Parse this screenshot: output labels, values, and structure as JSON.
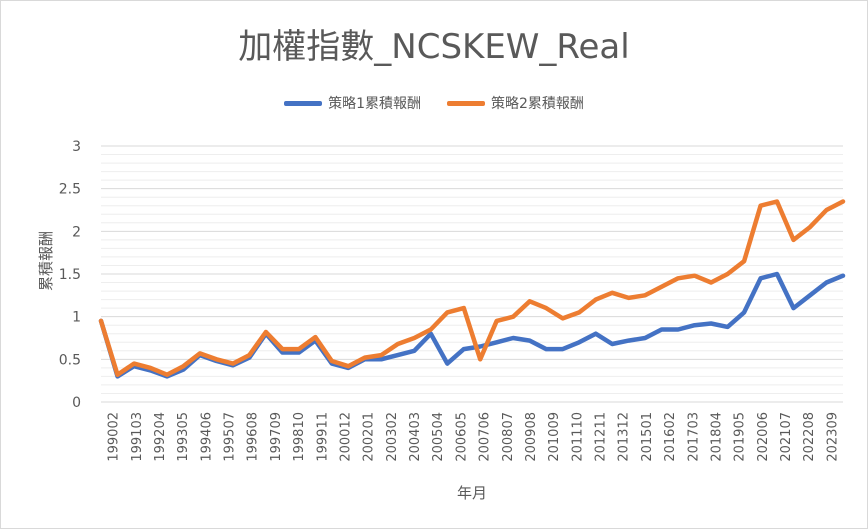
{
  "chart_data": {
    "type": "line",
    "title": "加權指數_NCSKEW_Real",
    "xlabel": "年月",
    "ylabel": "累積報酬",
    "ylim": [
      0,
      3
    ],
    "yticks": [
      "0",
      "0.5",
      "1",
      "1.5",
      "2",
      "2.5",
      "3"
    ],
    "xtick_labels": [
      "199002",
      "199103",
      "199204",
      "199305",
      "199406",
      "199507",
      "199608",
      "199709",
      "199810",
      "199911",
      "200012",
      "200201",
      "200302",
      "200403",
      "200504",
      "200605",
      "200706",
      "200807",
      "200908",
      "201009",
      "201110",
      "201211",
      "201312",
      "201501",
      "201602",
      "201703",
      "201804",
      "201905",
      "202006",
      "202107",
      "202208",
      "202309"
    ],
    "grid": "horizontal",
    "legend_position": "top",
    "series": [
      {
        "name": "策略1累積報酬",
        "color": "#4472C4",
        "values": [
          0.95,
          0.3,
          0.42,
          0.37,
          0.3,
          0.38,
          0.55,
          0.48,
          0.43,
          0.52,
          0.8,
          0.58,
          0.58,
          0.72,
          0.45,
          0.4,
          0.5,
          0.5,
          0.55,
          0.6,
          0.8,
          0.45,
          0.62,
          0.65,
          0.7,
          0.75,
          0.72,
          0.62,
          0.62,
          0.7,
          0.8,
          0.68,
          0.72,
          0.75,
          0.85,
          0.85,
          0.9,
          0.92,
          0.88,
          1.05,
          1.45,
          1.5,
          1.1,
          1.25,
          1.4,
          1.48
        ]
      },
      {
        "name": "策略2累積報酬",
        "color": "#ED7D31",
        "values": [
          0.95,
          0.32,
          0.45,
          0.4,
          0.32,
          0.42,
          0.57,
          0.5,
          0.45,
          0.55,
          0.82,
          0.62,
          0.62,
          0.76,
          0.48,
          0.42,
          0.52,
          0.55,
          0.68,
          0.75,
          0.85,
          1.05,
          1.1,
          0.5,
          0.95,
          1.0,
          1.18,
          1.1,
          0.98,
          1.05,
          1.2,
          1.28,
          1.22,
          1.25,
          1.35,
          1.45,
          1.48,
          1.4,
          1.5,
          1.65,
          2.3,
          2.35,
          1.9,
          2.05,
          2.25,
          2.35
        ]
      }
    ]
  }
}
